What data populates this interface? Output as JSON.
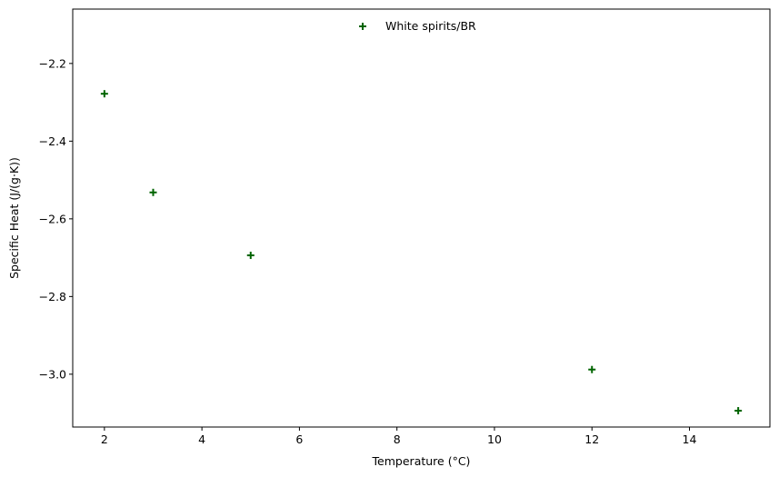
{
  "chart_data": {
    "type": "scatter",
    "title": "",
    "xlabel": "Temperature (°C)",
    "ylabel": "Specific Heat (J/(g·K))",
    "xlim": [
      1.35,
      15.65
    ],
    "ylim": [
      -3.136,
      -2.06
    ],
    "xticks": [
      2,
      4,
      6,
      8,
      10,
      12,
      14
    ],
    "yticks": [
      -3.0,
      -2.8,
      -2.6,
      -2.4,
      -2.2
    ],
    "xtick_labels": [
      "2",
      "4",
      "6",
      "8",
      "10",
      "12",
      "14"
    ],
    "ytick_labels": [
      "−3.0",
      "−2.8",
      "−2.6",
      "−2.4",
      "−2.2"
    ],
    "grid": false,
    "legend_position": "top-center",
    "series": [
      {
        "name": "White spirits/BR",
        "marker": "plus",
        "color": "#006400",
        "x": [
          2,
          3,
          5,
          12,
          15
        ],
        "y": [
          -2.278,
          -2.532,
          -2.694,
          -2.988,
          -3.094
        ]
      }
    ]
  }
}
